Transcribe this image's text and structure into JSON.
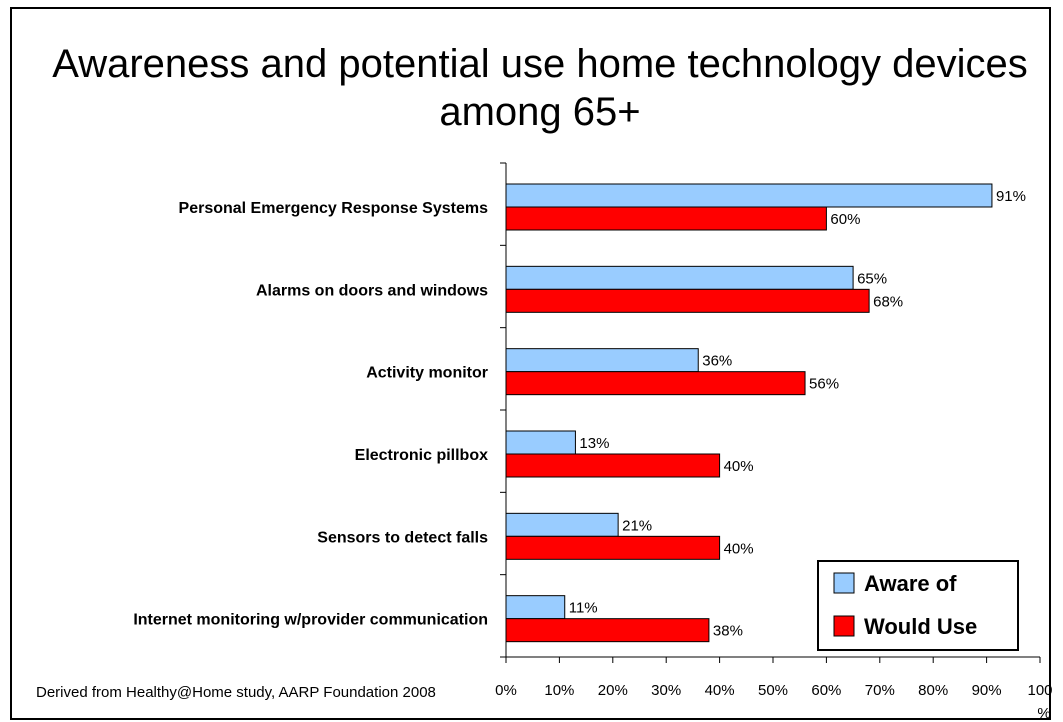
{
  "title": "Awareness and potential use home technology devices among 65+",
  "footnote": "Derived from Healthy@Home study, AARP Foundation 2008",
  "colors": {
    "aware": "#99ccff",
    "would_use": "#ff0000",
    "axis": "#000000"
  },
  "chart_data": {
    "type": "bar",
    "orientation": "horizontal",
    "categories": [
      "Personal Emergency Response Systems",
      "Alarms on doors and windows",
      "Activity monitor",
      "Electronic pillbox",
      "Sensors to detect falls",
      "Internet monitoring w/provider communication"
    ],
    "series": [
      {
        "name": "Aware of",
        "values": [
          91,
          65,
          36,
          13,
          21,
          11
        ],
        "labels": [
          "91%",
          "65%",
          "36%",
          "13%",
          "21%",
          "11%"
        ]
      },
      {
        "name": "Would Use",
        "values": [
          60,
          68,
          56,
          40,
          40,
          38
        ],
        "labels": [
          "60%",
          "68%",
          "56%",
          "40%",
          "40%",
          "38%"
        ]
      }
    ],
    "xlim": [
      0,
      100
    ],
    "xticks": [
      0,
      10,
      20,
      30,
      40,
      50,
      60,
      70,
      80,
      90,
      100
    ],
    "xtick_labels": [
      "0%",
      "10%",
      "20%",
      "30%",
      "40%",
      "50%",
      "60%",
      "70%",
      "80%",
      "90%",
      "100"
    ],
    "xtick_last_suffix": "%",
    "legend_position": "bottom-right",
    "grid": false
  }
}
